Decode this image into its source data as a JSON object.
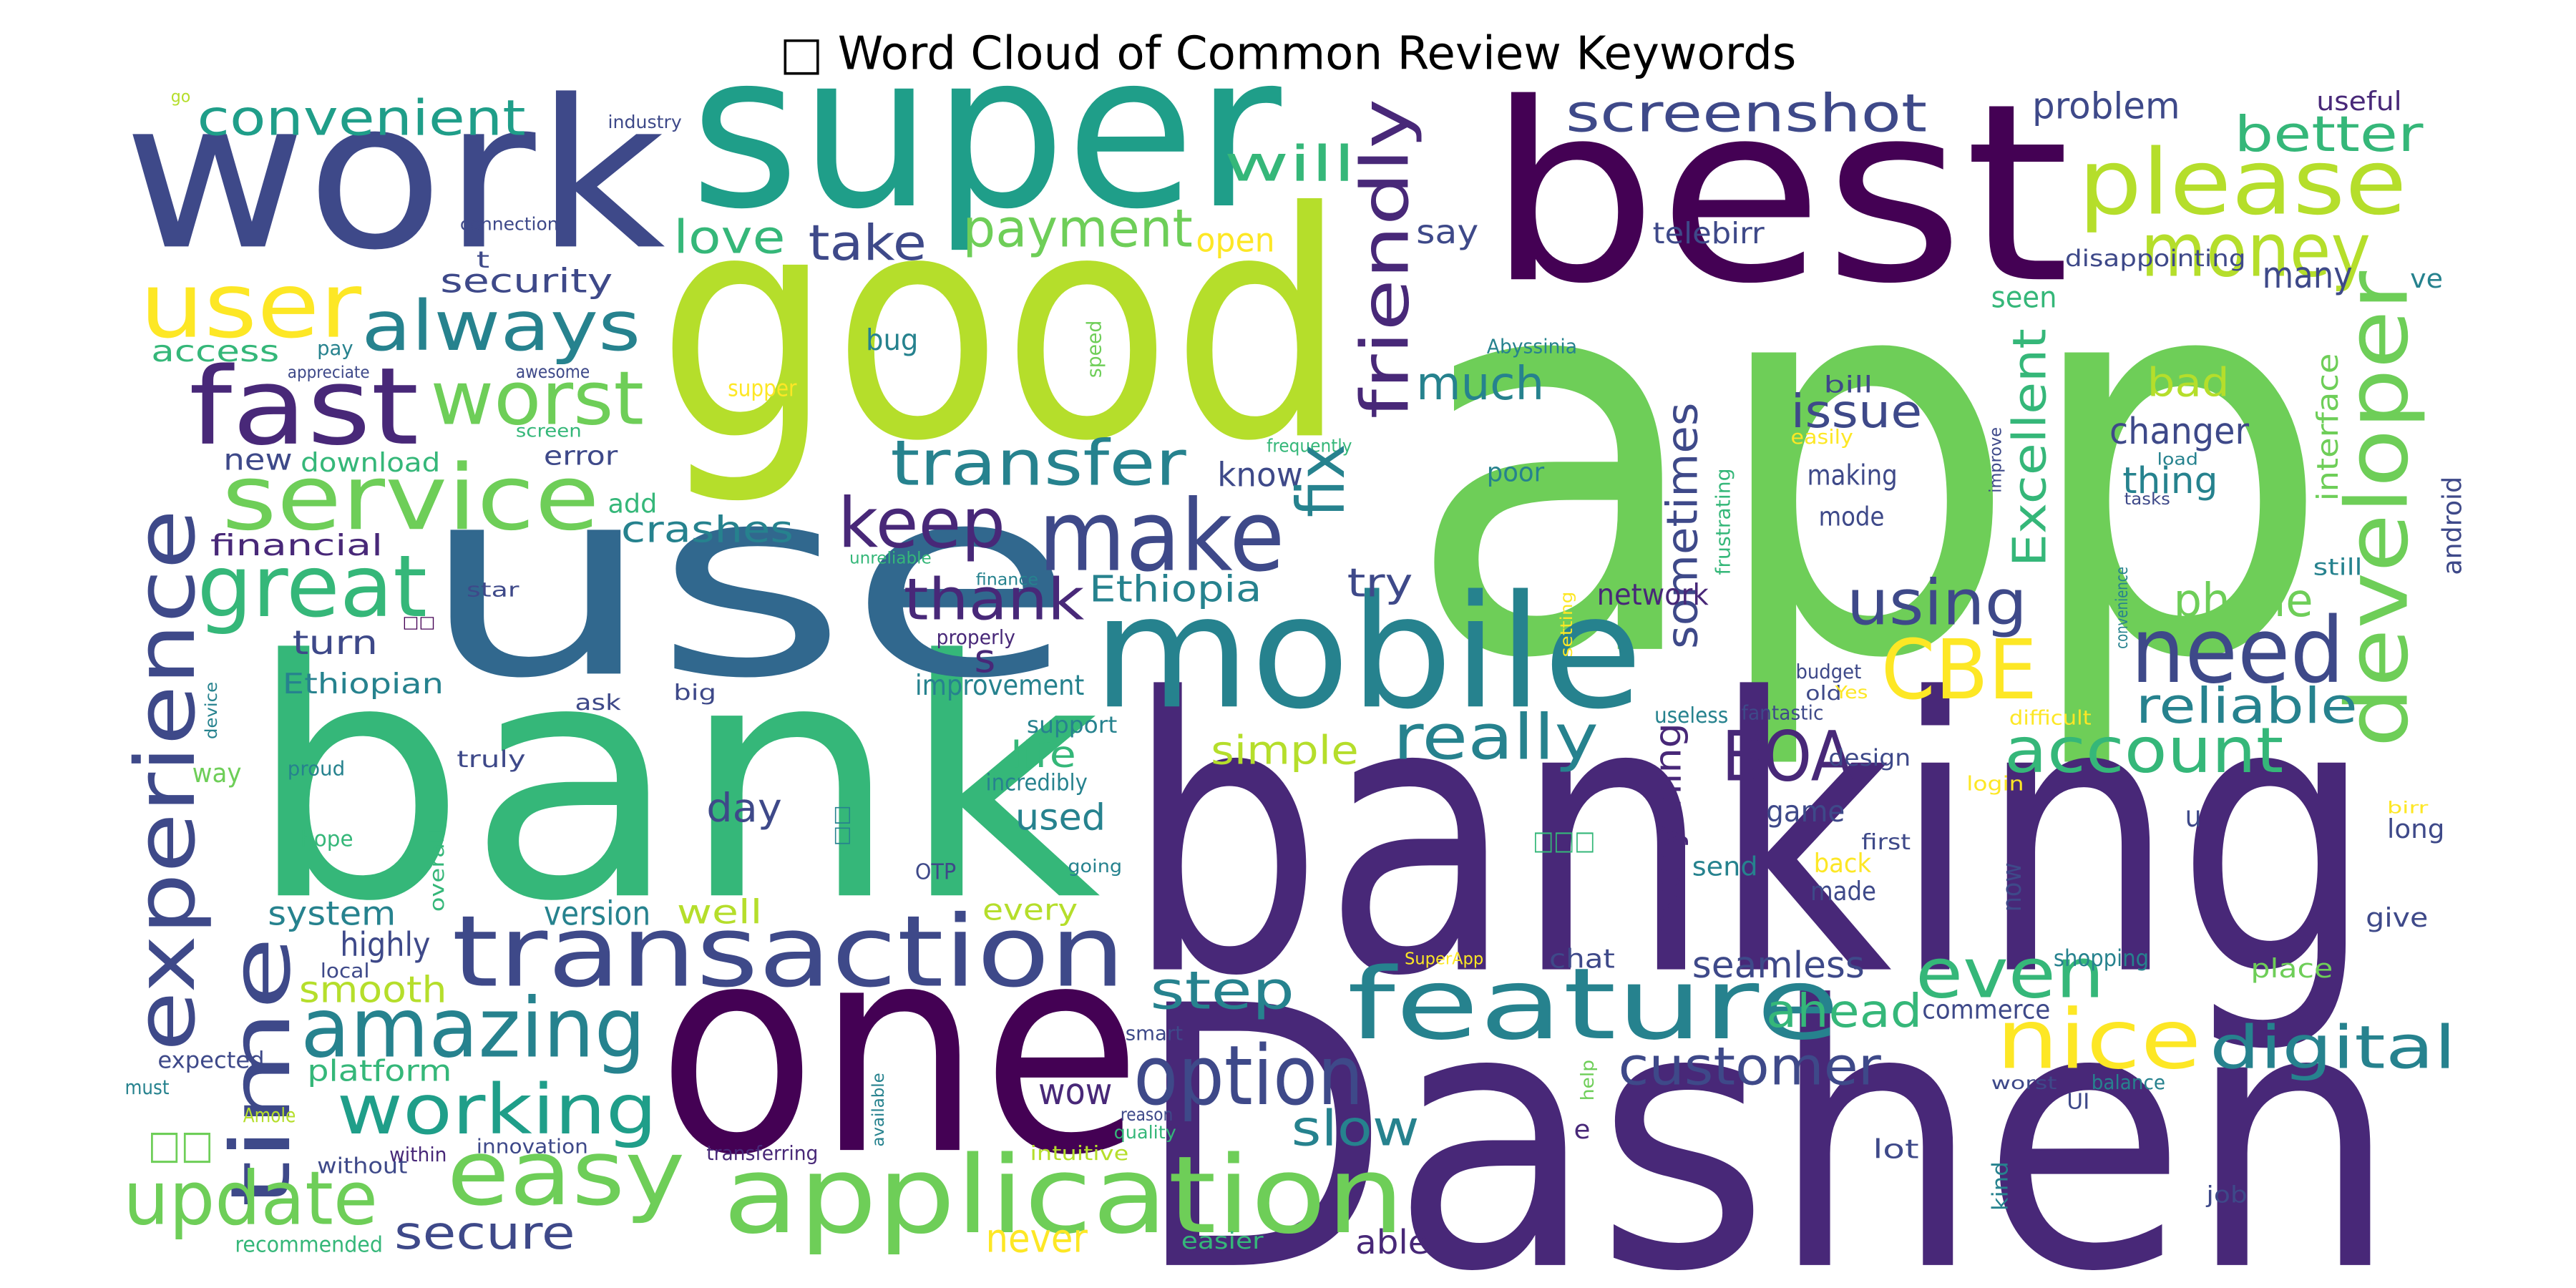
{
  "title": "□ Word Cloud of Common Review Keywords",
  "words": [
    "app",
    "banking",
    "Dashen",
    "bank",
    "good",
    "use",
    "one",
    "best",
    "super",
    "work",
    "mobile",
    "transaction",
    "application",
    "feature",
    "please",
    "money",
    "developer",
    "experience",
    "time",
    "friendly",
    "fast",
    "user",
    "service",
    "great",
    "always",
    "worst",
    "convenient",
    "security",
    "access",
    "new",
    "download",
    "error",
    "add",
    "crashes",
    "financial",
    "turn",
    "star",
    "Ethiopian",
    "ask",
    "big",
    "truly",
    "proud",
    "way",
    "device",
    "hope",
    "overall",
    "system",
    "highly",
    "local",
    "smooth",
    "platform",
    "expected",
    "must",
    "working",
    "amazing",
    "update",
    "secure",
    "recommended",
    "without",
    "Amole",
    "within",
    "innovation",
    "transferring",
    "easy",
    "never",
    "easier",
    "able",
    "version",
    "well",
    "every",
    "step",
    "option",
    "wow",
    "slow",
    "smart",
    "reason",
    "quality",
    "intuitive",
    "available",
    "OTP",
    "going",
    "used",
    "day",
    "life",
    "incredibly",
    "support",
    "simple",
    "really",
    "improvement",
    "properly",
    "finance",
    "s",
    "thank",
    "Ethiopia",
    "try",
    "know",
    "keep",
    "make",
    "transfer",
    "take",
    "love",
    "payment",
    "open",
    "will",
    "bug",
    "speed",
    "supper",
    "unreliable",
    "frequently",
    "fix",
    "much",
    "say",
    "screenshot",
    "problem",
    "better",
    "useful",
    "telebirr",
    "disappointing",
    "many",
    "ve",
    "seen",
    "Excellent",
    "sometimes",
    "issue",
    "Abyssinia",
    "bill",
    "easily",
    "frustrating",
    "poor",
    "making",
    "mode",
    "bad",
    "changer",
    "thing",
    "improve",
    "tasks",
    "load",
    "interface",
    "android",
    "still",
    "network",
    "using",
    "phone",
    "convenience",
    "setting",
    "CBE",
    "need",
    "reliable",
    "budget",
    "old",
    "Yes",
    "useless",
    "fantastic",
    "difficult",
    "BOA",
    "account",
    "design",
    "login",
    "everything",
    "game",
    "first",
    "send",
    "□□□",
    "back",
    "made",
    "now",
    "u",
    "long",
    "birr",
    "give",
    "even",
    "chat",
    "seamless",
    "SuperApp",
    "customer",
    "ahead",
    "commerce",
    "nice",
    "digital",
    "place",
    "shopping",
    "help",
    "worst",
    "balance",
    "UI",
    "e",
    "lot",
    "kind",
    "job",
    "go",
    "industry",
    "connection",
    "t",
    "pay",
    "appreciate",
    "awesome",
    "screen",
    "□□",
    "□□",
    "□□"
  ]
}
